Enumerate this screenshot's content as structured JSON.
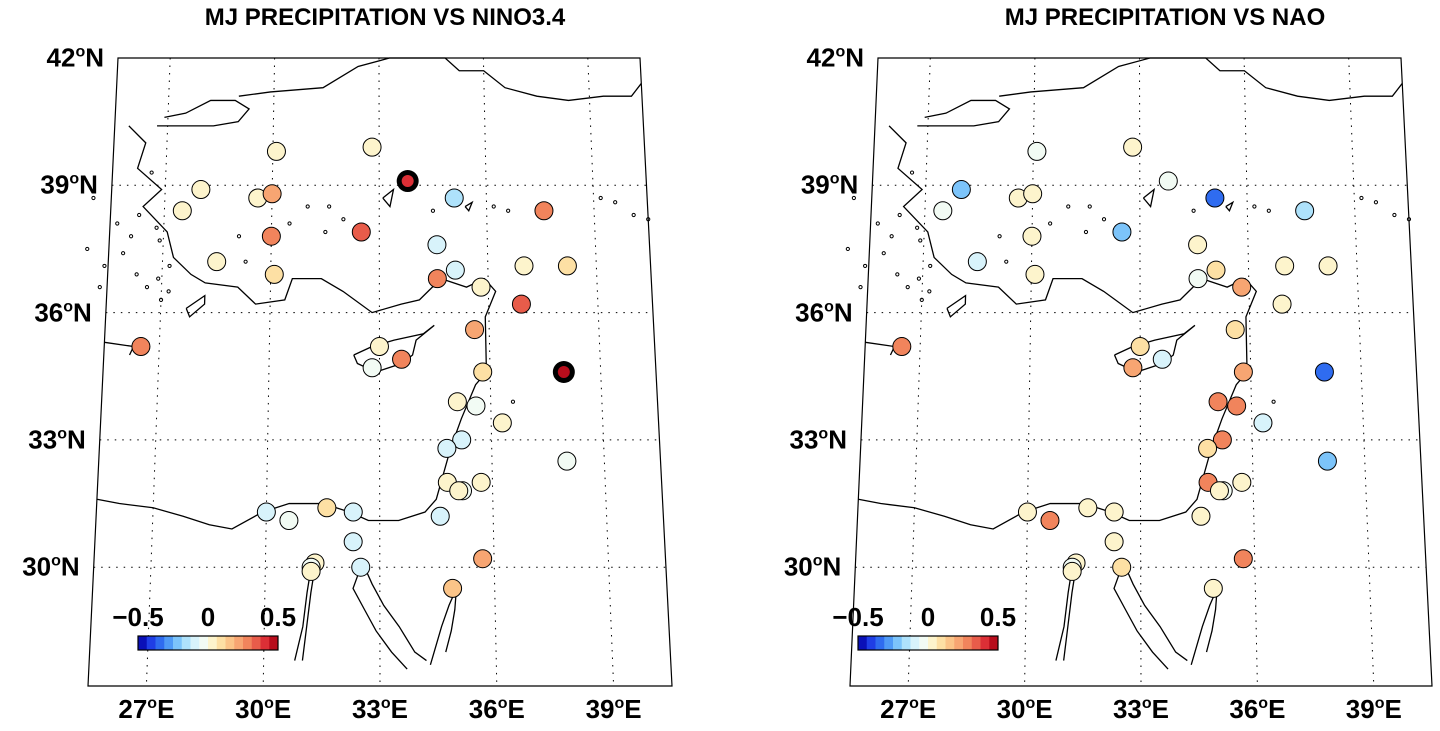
{
  "panels": [
    {
      "id": "nino",
      "title": "MJ PRECIPITATION VS NINO3.4",
      "stations": [
        {
          "lon": 26.5,
          "lat": 35.2,
          "r": 0.3
        },
        {
          "lon": 28.0,
          "lat": 38.9,
          "r": 0.05
        },
        {
          "lon": 27.5,
          "lat": 38.4,
          "r": 0.05
        },
        {
          "lon": 28.5,
          "lat": 37.2,
          "r": 0.05
        },
        {
          "lon": 29.6,
          "lat": 38.7,
          "r": 0.05
        },
        {
          "lon": 30.1,
          "lat": 39.8,
          "r": 0.05
        },
        {
          "lon": 30.0,
          "lat": 38.8,
          "r": 0.2
        },
        {
          "lon": 30.0,
          "lat": 37.8,
          "r": 0.25
        },
        {
          "lon": 30.1,
          "lat": 36.9,
          "r": 0.1
        },
        {
          "lon": 32.8,
          "lat": 39.9,
          "r": 0.05
        },
        {
          "lon": 32.5,
          "lat": 37.9,
          "r": 0.35
        },
        {
          "lon": 33.8,
          "lat": 39.1,
          "r": 0.4,
          "sig": true
        },
        {
          "lon": 35.1,
          "lat": 38.7,
          "r": -0.15
        },
        {
          "lon": 34.6,
          "lat": 37.6,
          "r": -0.1
        },
        {
          "lon": 35.1,
          "lat": 37.0,
          "r": -0.1
        },
        {
          "lon": 34.6,
          "lat": 36.8,
          "r": 0.25
        },
        {
          "lon": 35.8,
          "lat": 36.6,
          "r": 0.05
        },
        {
          "lon": 37.0,
          "lat": 37.1,
          "r": 0.05
        },
        {
          "lon": 37.6,
          "lat": 38.4,
          "r": 0.25
        },
        {
          "lon": 38.2,
          "lat": 37.1,
          "r": 0.1
        },
        {
          "lon": 36.9,
          "lat": 36.2,
          "r": 0.35
        },
        {
          "lon": 33.0,
          "lat": 35.2,
          "r": 0.05
        },
        {
          "lon": 32.8,
          "lat": 34.7,
          "r": -0.05
        },
        {
          "lon": 33.6,
          "lat": 34.9,
          "r": 0.3
        },
        {
          "lon": 35.6,
          "lat": 35.6,
          "r": 0.2
        },
        {
          "lon": 35.8,
          "lat": 34.6,
          "r": 0.1
        },
        {
          "lon": 38.0,
          "lat": 34.6,
          "r": 0.45,
          "sig": true
        },
        {
          "lon": 35.1,
          "lat": 33.9,
          "r": 0.05
        },
        {
          "lon": 35.6,
          "lat": 33.8,
          "r": -0.05
        },
        {
          "lon": 36.3,
          "lat": 33.4,
          "r": 0.05
        },
        {
          "lon": 35.2,
          "lat": 33.0,
          "r": -0.1
        },
        {
          "lon": 34.8,
          "lat": 32.8,
          "r": -0.1
        },
        {
          "lon": 38.0,
          "lat": 32.5,
          "r": -0.05
        },
        {
          "lon": 34.8,
          "lat": 32.0,
          "r": 0.05
        },
        {
          "lon": 35.7,
          "lat": 32.0,
          "r": 0.05
        },
        {
          "lon": 35.2,
          "lat": 31.8,
          "r": -0.05
        },
        {
          "lon": 35.1,
          "lat": 31.8,
          "r": 0.0
        },
        {
          "lon": 34.6,
          "lat": 31.2,
          "r": -0.1
        },
        {
          "lon": 30.0,
          "lat": 31.3,
          "r": -0.1
        },
        {
          "lon": 30.6,
          "lat": 31.1,
          "r": -0.05
        },
        {
          "lon": 31.6,
          "lat": 31.4,
          "r": 0.1
        },
        {
          "lon": 32.3,
          "lat": 31.3,
          "r": -0.1
        },
        {
          "lon": 32.3,
          "lat": 30.6,
          "r": -0.1
        },
        {
          "lon": 31.3,
          "lat": 30.1,
          "r": 0.0
        },
        {
          "lon": 31.2,
          "lat": 30.0,
          "r": -0.05
        },
        {
          "lon": 31.2,
          "lat": 29.9,
          "r": 0.0
        },
        {
          "lon": 32.5,
          "lat": 30.0,
          "r": -0.1
        },
        {
          "lon": 35.7,
          "lat": 30.2,
          "r": 0.2
        },
        {
          "lon": 34.9,
          "lat": 29.5,
          "r": 0.15
        }
      ]
    },
    {
      "id": "nao",
      "title": "MJ PRECIPITATION VS NAO",
      "stations": [
        {
          "lon": 26.5,
          "lat": 35.2,
          "r": 0.3
        },
        {
          "lon": 28.0,
          "lat": 38.9,
          "r": -0.2
        },
        {
          "lon": 27.5,
          "lat": 38.4,
          "r": -0.05
        },
        {
          "lon": 28.5,
          "lat": 37.2,
          "r": -0.1
        },
        {
          "lon": 29.6,
          "lat": 38.7,
          "r": 0.05
        },
        {
          "lon": 30.1,
          "lat": 39.8,
          "r": -0.05
        },
        {
          "lon": 30.0,
          "lat": 38.8,
          "r": 0.05
        },
        {
          "lon": 30.0,
          "lat": 37.8,
          "r": 0.05
        },
        {
          "lon": 30.1,
          "lat": 36.9,
          "r": 0.05
        },
        {
          "lon": 32.8,
          "lat": 39.9,
          "r": 0.05
        },
        {
          "lon": 32.5,
          "lat": 37.9,
          "r": -0.2
        },
        {
          "lon": 33.8,
          "lat": 39.1,
          "r": -0.05
        },
        {
          "lon": 35.1,
          "lat": 38.7,
          "r": -0.35
        },
        {
          "lon": 34.6,
          "lat": 37.6,
          "r": 0.05
        },
        {
          "lon": 35.1,
          "lat": 37.0,
          "r": 0.1
        },
        {
          "lon": 34.6,
          "lat": 36.8,
          "r": -0.05
        },
        {
          "lon": 35.8,
          "lat": 36.6,
          "r": 0.2
        },
        {
          "lon": 37.0,
          "lat": 37.1,
          "r": 0.05
        },
        {
          "lon": 37.6,
          "lat": 38.4,
          "r": -0.15
        },
        {
          "lon": 38.2,
          "lat": 37.1,
          "r": 0.05
        },
        {
          "lon": 36.9,
          "lat": 36.2,
          "r": 0.05
        },
        {
          "lon": 33.0,
          "lat": 35.2,
          "r": 0.1
        },
        {
          "lon": 32.8,
          "lat": 34.7,
          "r": 0.2
        },
        {
          "lon": 33.6,
          "lat": 34.9,
          "r": -0.1
        },
        {
          "lon": 35.6,
          "lat": 35.6,
          "r": 0.1
        },
        {
          "lon": 35.8,
          "lat": 34.6,
          "r": 0.2
        },
        {
          "lon": 38.0,
          "lat": 34.6,
          "r": -0.35
        },
        {
          "lon": 35.1,
          "lat": 33.9,
          "r": 0.25
        },
        {
          "lon": 35.6,
          "lat": 33.8,
          "r": 0.3
        },
        {
          "lon": 36.3,
          "lat": 33.4,
          "r": -0.1
        },
        {
          "lon": 35.2,
          "lat": 33.0,
          "r": 0.3
        },
        {
          "lon": 34.8,
          "lat": 32.8,
          "r": 0.1
        },
        {
          "lon": 38.0,
          "lat": 32.5,
          "r": -0.2
        },
        {
          "lon": 34.8,
          "lat": 32.0,
          "r": 0.3
        },
        {
          "lon": 35.7,
          "lat": 32.0,
          "r": 0.05
        },
        {
          "lon": 35.2,
          "lat": 31.8,
          "r": -0.05
        },
        {
          "lon": 35.1,
          "lat": 31.8,
          "r": 0.0
        },
        {
          "lon": 34.6,
          "lat": 31.2,
          "r": 0.05
        },
        {
          "lon": 30.0,
          "lat": 31.3,
          "r": 0.05
        },
        {
          "lon": 30.6,
          "lat": 31.1,
          "r": 0.3
        },
        {
          "lon": 31.6,
          "lat": 31.4,
          "r": 0.05
        },
        {
          "lon": 32.3,
          "lat": 31.3,
          "r": 0.05
        },
        {
          "lon": 32.3,
          "lat": 30.6,
          "r": 0.0
        },
        {
          "lon": 31.3,
          "lat": 30.1,
          "r": 0.05
        },
        {
          "lon": 31.2,
          "lat": 30.0,
          "r": -0.05
        },
        {
          "lon": 31.2,
          "lat": 29.9,
          "r": 0.0
        },
        {
          "lon": 32.5,
          "lat": 30.0,
          "r": 0.1
        },
        {
          "lon": 35.7,
          "lat": 30.2,
          "r": 0.3
        },
        {
          "lon": 34.9,
          "lat": 29.5,
          "r": 0.05
        }
      ]
    }
  ],
  "lat_labels": [
    {
      "lat": 42,
      "deg": "42",
      "sup": "o",
      "hemi": "N"
    },
    {
      "lat": 39,
      "deg": "39",
      "sup": "o",
      "hemi": "N"
    },
    {
      "lat": 36,
      "deg": "36",
      "sup": "o",
      "hemi": "N"
    },
    {
      "lat": 33,
      "deg": "33",
      "sup": "o",
      "hemi": "N"
    },
    {
      "lat": 30,
      "deg": "30",
      "sup": "o",
      "hemi": "N"
    }
  ],
  "lon_labels": [
    {
      "lon": 27,
      "deg": "27",
      "sup": "o",
      "hemi": "E"
    },
    {
      "lon": 30,
      "deg": "30",
      "sup": "o",
      "hemi": "E"
    },
    {
      "lon": 33,
      "deg": "33",
      "sup": "o",
      "hemi": "E"
    },
    {
      "lon": 36,
      "deg": "36",
      "sup": "o",
      "hemi": "E"
    },
    {
      "lon": 39,
      "deg": "39",
      "sup": "o",
      "hemi": "E"
    }
  ],
  "colorbar": {
    "min": -0.5,
    "max": 0.5,
    "ticks": [
      {
        "value": -0.5,
        "label": "−0.5"
      },
      {
        "value": 0,
        "label": "0"
      },
      {
        "value": 0.5,
        "label": "0.5"
      }
    ],
    "colors": [
      "#0a10b8",
      "#1f3ee6",
      "#2f6cf0",
      "#4f9af6",
      "#7cc4fa",
      "#aee2fb",
      "#d8f3fb",
      "#f2fbf4",
      "#fdf4cc",
      "#fde0a4",
      "#fbc488",
      "#f7a572",
      "#f1845c",
      "#e85c4a",
      "#dc2f36",
      "#b80d1c"
    ]
  },
  "significance_ring_color": "#000000"
}
